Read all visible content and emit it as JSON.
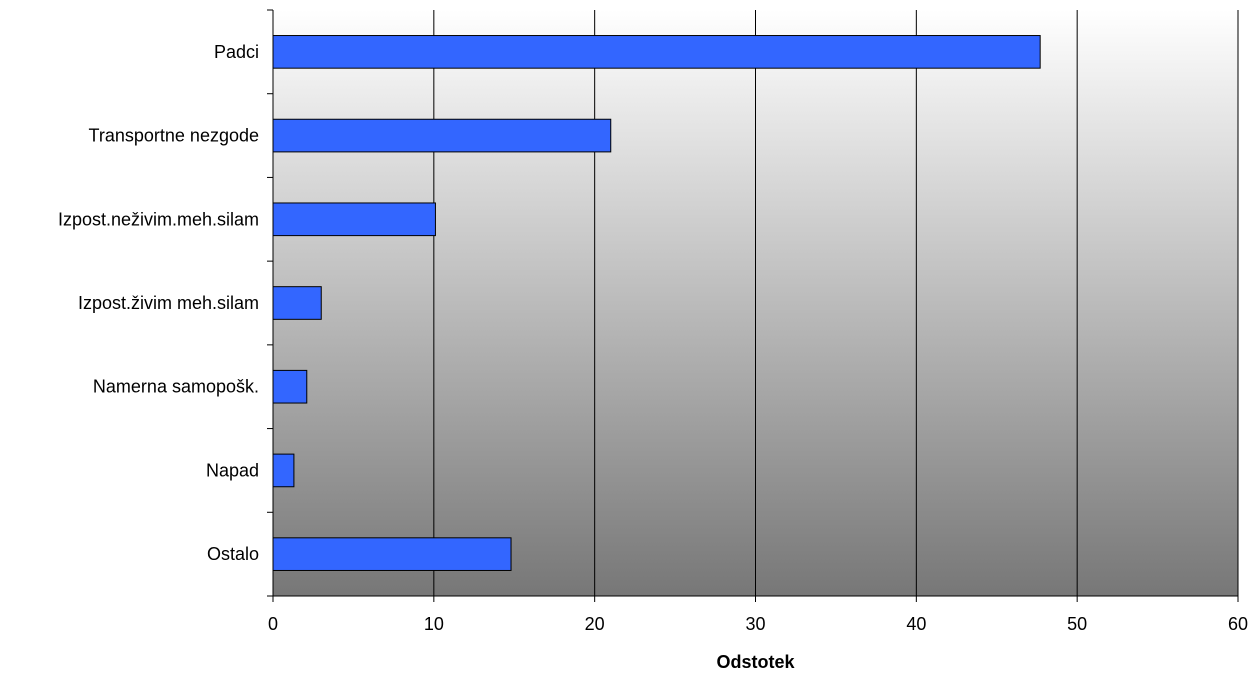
{
  "chart_data": {
    "type": "bar",
    "orientation": "horizontal",
    "categories": [
      "Padci",
      "Transportne nezgode",
      "Izpost.neživim.meh.silam",
      "Izpost.živim meh.silam",
      "Namerna samopošk.",
      "Napad",
      "Ostalo"
    ],
    "values": [
      47.7,
      21.0,
      10.1,
      3.0,
      2.1,
      1.3,
      14.8
    ],
    "title": "",
    "xlabel": "Odstotek",
    "ylabel": "",
    "xlim": [
      0,
      60
    ],
    "x_ticks": [
      "0",
      "10",
      "20",
      "30",
      "40",
      "50",
      "60"
    ],
    "grid": "vertical major gridlines",
    "legend": "none",
    "colors": {
      "bar_fill": "#3366FF",
      "bar_stroke": "#000000",
      "plot_bg_top": "#ffffff",
      "plot_bg_bottom": "#777777",
      "grid": "#000000"
    }
  }
}
